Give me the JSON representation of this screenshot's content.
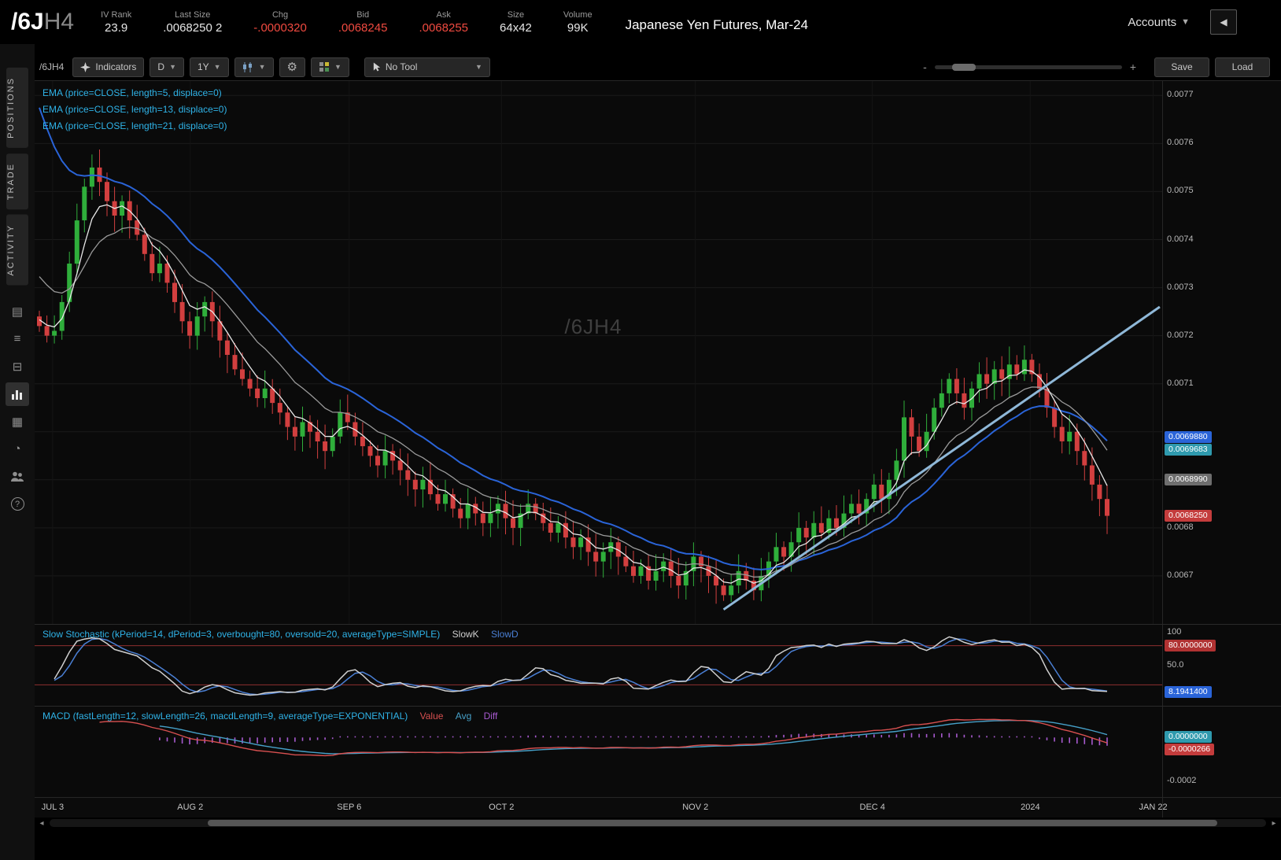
{
  "header": {
    "symbol": "/6J",
    "symbol_suffix": "H4",
    "fields": [
      {
        "label": "IV Rank",
        "value": "23.9",
        "color": "#e6e6e6"
      },
      {
        "label": "Last Size",
        "value": ".0068250 2",
        "color": "#e6e6e6"
      },
      {
        "label": "Chg",
        "value": "-.0000320",
        "color": "#f04a40"
      },
      {
        "label": "Bid",
        "value": ".0068245",
        "color": "#f04a40"
      },
      {
        "label": "Ask",
        "value": ".0068255",
        "color": "#f04a40"
      },
      {
        "label": "Size",
        "value": "64x42",
        "color": "#e6e6e6"
      },
      {
        "label": "Volume",
        "value": "99K",
        "color": "#e6e6e6"
      }
    ],
    "title": "Japanese Yen Futures, Mar-24",
    "accounts_label": "Accounts"
  },
  "sidebar": {
    "tabs": [
      "POSITIONS",
      "TRADE",
      "ACTIVITY"
    ],
    "icons": [
      "calculator-icon",
      "watchlist-icon",
      "ledger-icon",
      "chart-icon",
      "grid-icon",
      "clock-icon",
      "users-icon",
      "help-icon"
    ]
  },
  "toolbar": {
    "symbol": "/6JH4",
    "indicators_label": "Indicators",
    "timeframe": "D",
    "range": "1Y",
    "tool_label": "No Tool",
    "zoom_minus": "-",
    "zoom_plus": "+",
    "save_label": "Save",
    "load_label": "Load"
  },
  "studies": {
    "ema_labels": [
      "EMA (price=CLOSE, length=5, displace=0)",
      "EMA (price=CLOSE, length=13, displace=0)",
      "EMA (price=CLOSE, length=21, displace=0)"
    ],
    "stoch_label": "Slow Stochastic (kPeriod=14, dPeriod=3, overbought=80, oversold=20, averageType=SIMPLE)",
    "slowk_label": "SlowK",
    "slowd_label": "SlowD",
    "macd_label": "MACD (fastLength=12, slowLength=26, macdLength=9, averageType=EXPONENTIAL)",
    "value_label": "Value",
    "avg_label": "Avg",
    "diff_label": "Diff"
  },
  "colors": {
    "up": "#2fae3b",
    "down": "#d23f3f",
    "ema5": "#e8e8e8",
    "ema13": "#9a9a9a",
    "ema21": "#2a64d8",
    "trendline": "#8fb8d8",
    "study_label": "#2fb3e8",
    "slowk": "#cfcfcf",
    "slowd": "#4a7fd4",
    "macd_value": "#d85050",
    "macd_avg": "#46a0c8",
    "macd_diff": "#a85ad0",
    "stoch_band": "#8f2f2f"
  },
  "chart_data": {
    "type": "candlestick",
    "symbol": "/6JH4",
    "watermark": "/6JH4",
    "timeframe": "1Y, daily bars",
    "title": "Japanese Yen Futures, Mar-24",
    "ylim": [
      0.0066,
      0.00773
    ],
    "closes": [
      0.00722,
      0.0072,
      0.00721,
      0.00727,
      0.00735,
      0.00744,
      0.00751,
      0.00755,
      0.00752,
      0.00748,
      0.00745,
      0.00748,
      0.00744,
      0.00741,
      0.00737,
      0.00733,
      0.00735,
      0.00731,
      0.00727,
      0.00723,
      0.0072,
      0.00724,
      0.00727,
      0.00723,
      0.00719,
      0.00716,
      0.00713,
      0.00711,
      0.00709,
      0.00707,
      0.00709,
      0.00706,
      0.00704,
      0.00701,
      0.00699,
      0.00702,
      0.007,
      0.00698,
      0.00696,
      0.00699,
      0.00704,
      0.00702,
      0.00699,
      0.00697,
      0.00695,
      0.00693,
      0.00696,
      0.00694,
      0.00692,
      0.0069,
      0.00688,
      0.0069,
      0.00687,
      0.00685,
      0.00687,
      0.00684,
      0.00682,
      0.00685,
      0.00683,
      0.00681,
      0.00683,
      0.00685,
      0.00682,
      0.0068,
      0.00683,
      0.00685,
      0.00683,
      0.00681,
      0.00679,
      0.00681,
      0.00678,
      0.00676,
      0.00678,
      0.00675,
      0.00673,
      0.00675,
      0.00677,
      0.00674,
      0.00672,
      0.0067,
      0.00672,
      0.00669,
      0.00671,
      0.00673,
      0.0067,
      0.00668,
      0.00671,
      0.00674,
      0.00672,
      0.0067,
      0.00668,
      0.00666,
      0.00668,
      0.00671,
      0.00669,
      0.00667,
      0.0067,
      0.00673,
      0.00676,
      0.00674,
      0.00677,
      0.0068,
      0.00678,
      0.00681,
      0.00679,
      0.00682,
      0.0068,
      0.00683,
      0.00685,
      0.00683,
      0.00686,
      0.00689,
      0.00686,
      0.0069,
      0.00694,
      0.00703,
      0.00699,
      0.00696,
      0.007,
      0.00705,
      0.00708,
      0.00711,
      0.00708,
      0.00705,
      0.00709,
      0.00712,
      0.0071,
      0.00713,
      0.00711,
      0.00714,
      0.00712,
      0.00715,
      0.00712,
      0.00709,
      0.00705,
      0.00701,
      0.00698,
      0.007,
      0.00696,
      0.00693,
      0.00689,
      0.00686,
      0.006825
    ],
    "price_ticks": [
      {
        "v": 0.0077,
        "label": "0.0077"
      },
      {
        "v": 0.0076,
        "label": "0.0076"
      },
      {
        "v": 0.0075,
        "label": "0.0075"
      },
      {
        "v": 0.0074,
        "label": "0.0074"
      },
      {
        "v": 0.0073,
        "label": "0.0073"
      },
      {
        "v": 0.0072,
        "label": "0.0072"
      },
      {
        "v": 0.0071,
        "label": "0.0071"
      },
      {
        "v": 0.0068,
        "label": "0.0068"
      },
      {
        "v": 0.0067,
        "label": "0.0067"
      }
    ],
    "grid_extra": [
      0.007,
      0.0069
    ],
    "price_bubbles": [
      {
        "label": "0.0069880",
        "color": "#2a64d8"
      },
      {
        "label": "0.0069683",
        "color": "#2f9aae"
      },
      {
        "label": "0.0068990",
        "color": "#6e6e6e"
      },
      {
        "label": "0.0068250",
        "color": "#c43c3c"
      }
    ],
    "time_ticks": [
      {
        "label": "JUL 3",
        "pos": 0.016
      },
      {
        "label": "AUG 2",
        "pos": 0.138
      },
      {
        "label": "SEP 6",
        "pos": 0.279
      },
      {
        "label": "OCT 2",
        "pos": 0.414
      },
      {
        "label": "NOV 2",
        "pos": 0.586
      },
      {
        "label": "DEC 4",
        "pos": 0.743
      },
      {
        "label": "2024",
        "pos": 0.883
      },
      {
        "label": "JAN 22",
        "pos": 0.992
      }
    ],
    "trendline": {
      "i1": 91,
      "p1": 0.00663,
      "i2": 149,
      "p2": 0.00726
    },
    "ema_lengths": [
      5,
      13,
      21
    ],
    "stochastic": {
      "k_period": 14,
      "d_period": 3,
      "overbought": 80,
      "oversold": 20,
      "ylim": [
        -12,
        112
      ],
      "ticks": [
        {
          "v": 100,
          "label": "100"
        },
        {
          "v": 50,
          "label": "50.0"
        }
      ],
      "bubbles": [
        {
          "v": 80,
          "label": "80.0000000",
          "color": "#b03232"
        },
        {
          "v": 8.19414,
          "label": "8.1941400",
          "color": "#2a64d8"
        }
      ],
      "last_slowk": 8.19414
    },
    "macd": {
      "fast": 12,
      "slow": 26,
      "signal": 9,
      "ylim": [
        -0.00027,
        0.00014
      ],
      "ticks": [
        {
          "v": -0.0002,
          "label": "-0.0002"
        }
      ],
      "bubbles": [
        {
          "v": 0,
          "label": "0.0000000",
          "color": "#2f9aae"
        },
        {
          "v": -2.66e-05,
          "label": "-0.0000266",
          "color": "#c43c3c"
        }
      ],
      "last_value": -2.66e-05
    }
  }
}
